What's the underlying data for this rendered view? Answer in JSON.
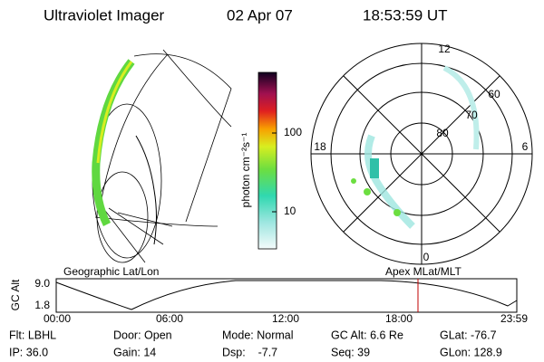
{
  "header": {
    "instrument": "Ultraviolet Imager",
    "date": "02 Apr 07",
    "time": "18:53:59 UT"
  },
  "colorbar": {
    "label": "photon cm⁻²s⁻¹",
    "ticks": [
      "100",
      "10"
    ]
  },
  "polar_plot": {
    "mlt_labels": [
      "12",
      "18",
      "6",
      "0"
    ],
    "mlat_labels": [
      "60",
      "70",
      "80"
    ]
  },
  "panels": {
    "left": "Geographic Lat/Lon",
    "right": "Apex MLat/MLT"
  },
  "orbit_plot": {
    "axis_label": "GC Alt",
    "y_labels": [
      "9.0",
      "1.8"
    ],
    "x_labels": [
      "00:00",
      "06:00",
      "12:00",
      "18:00",
      "23:59"
    ]
  },
  "info": [
    [
      "Flt: LBHL",
      "Door: Open",
      "Mode: Normal",
      "GC Alt: 6.6 Re",
      "GLat: -76.7"
    ],
    [
      "IP: 36.0",
      "Gain: 14",
      "Dsp:    -7.7",
      "Seq: 39",
      "GLon: 128.9"
    ]
  ]
}
